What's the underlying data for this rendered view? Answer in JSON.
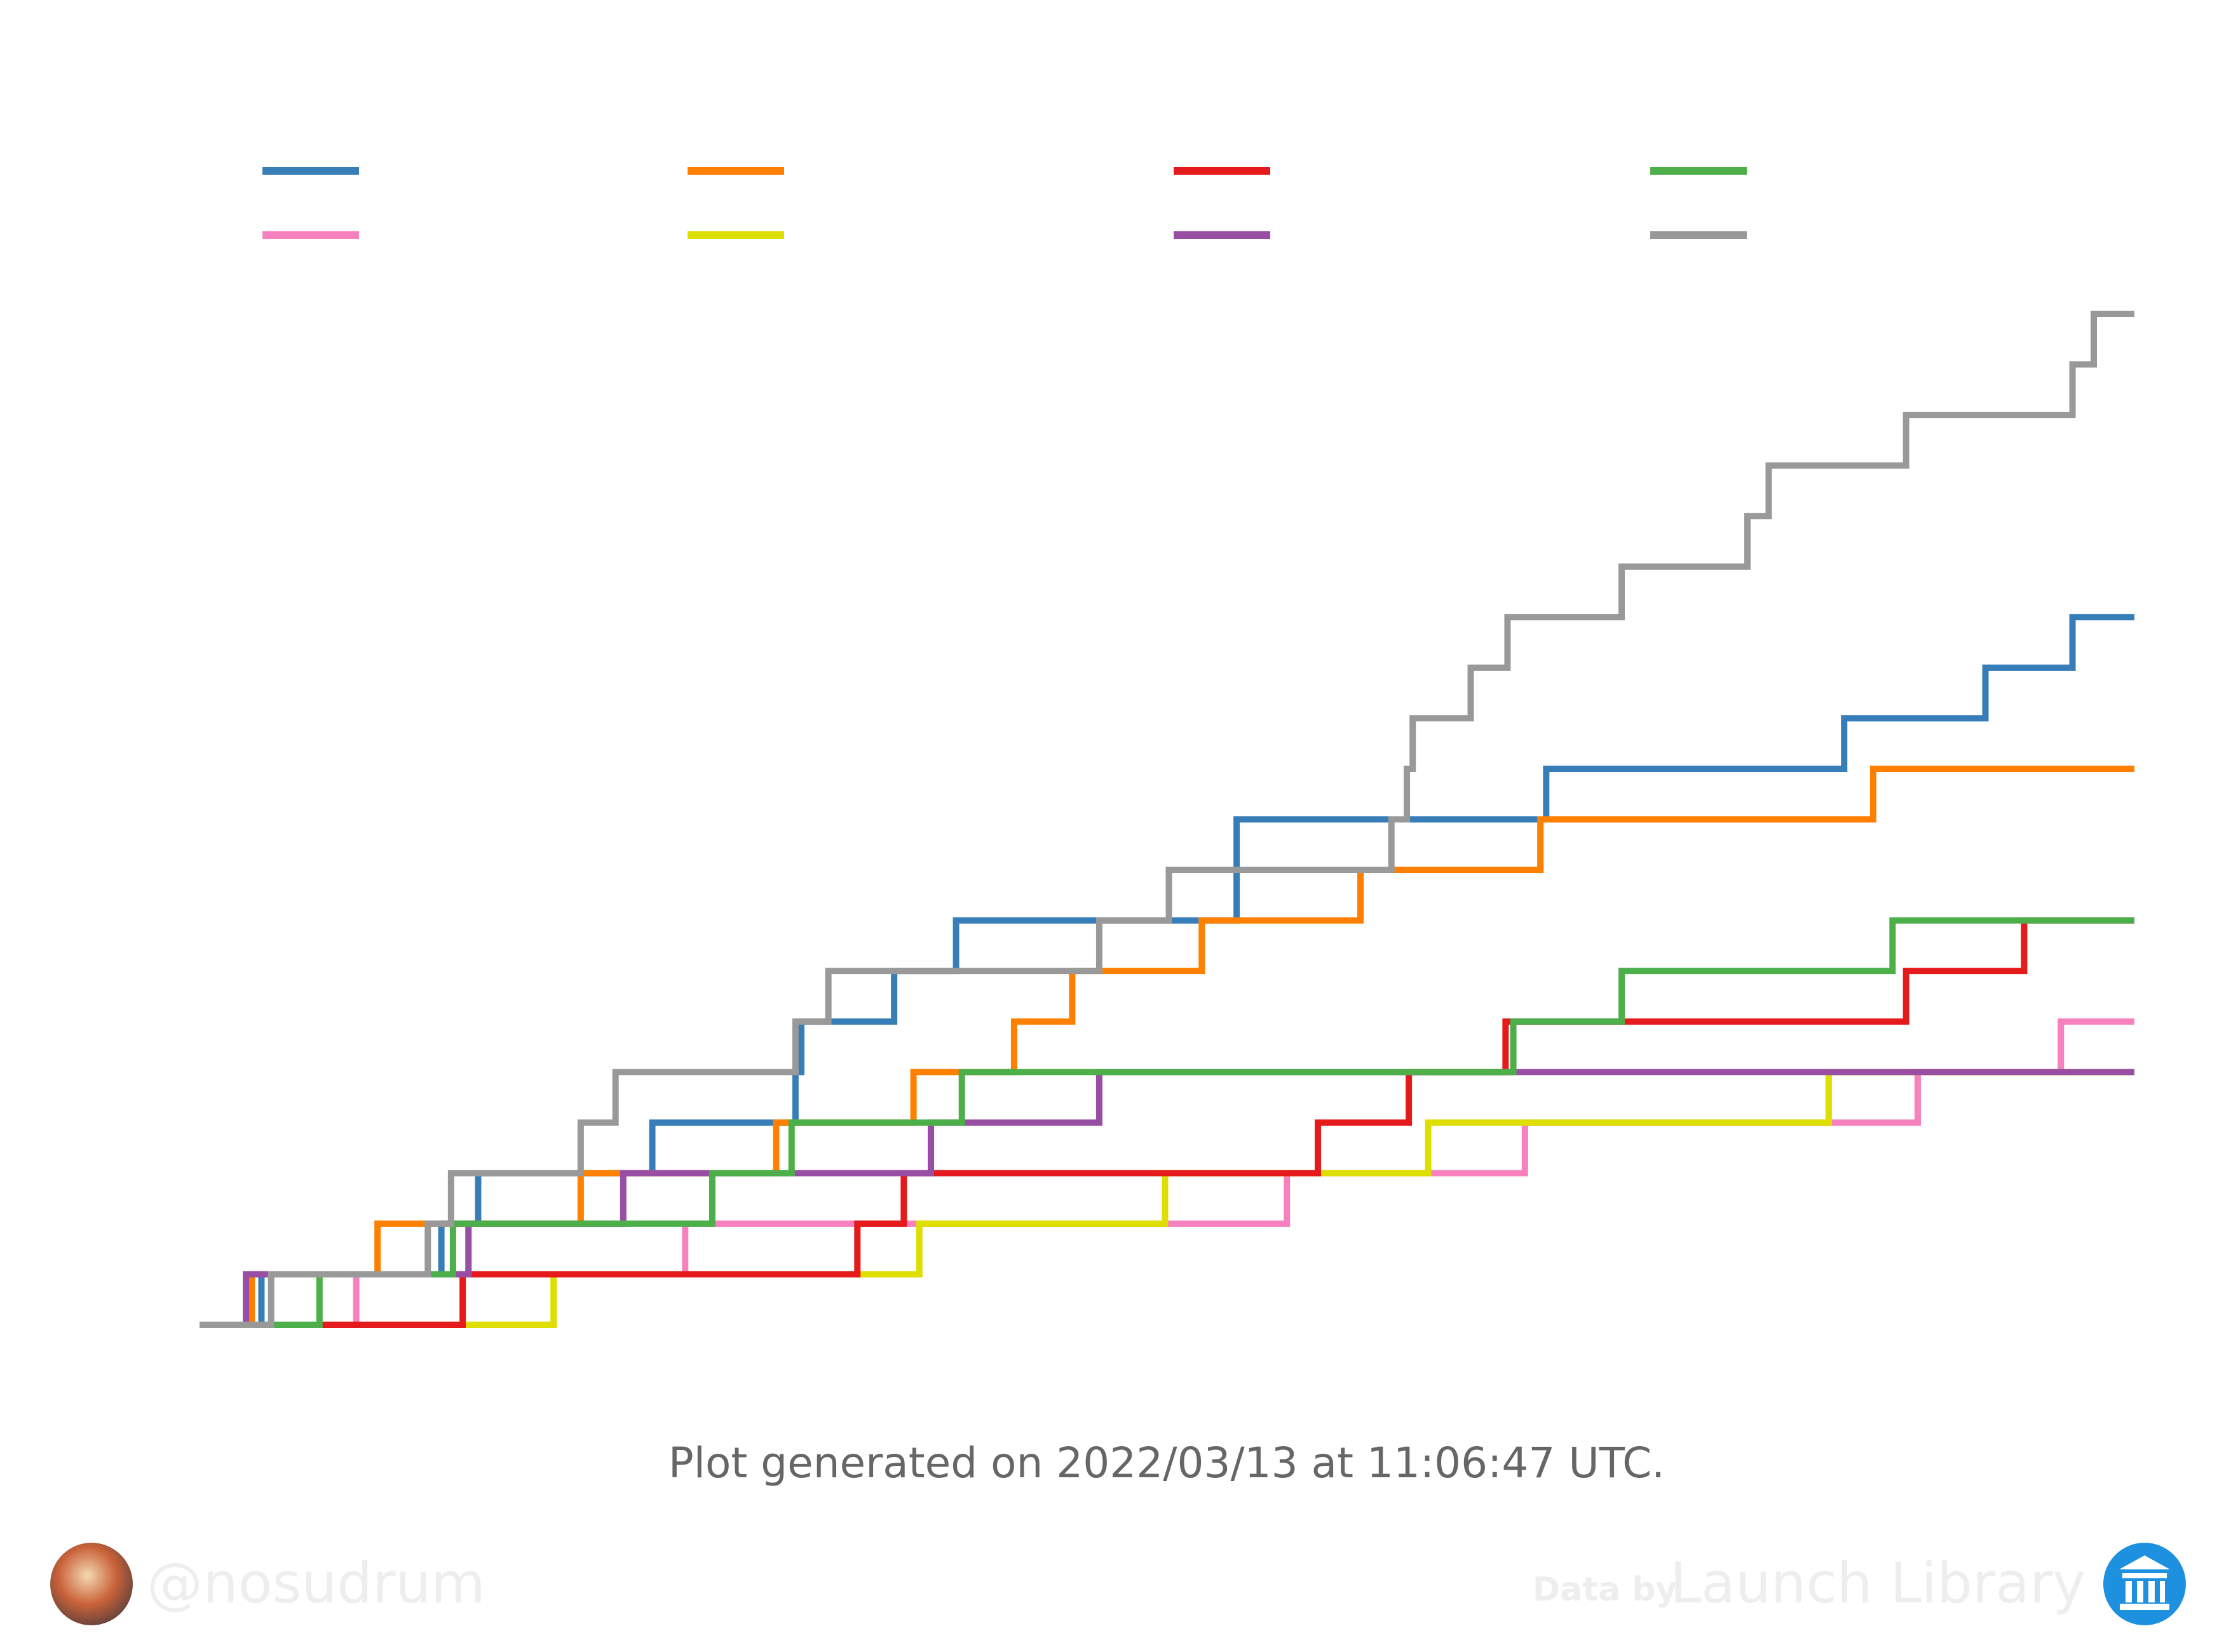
{
  "chart_data": {
    "type": "step",
    "xlim": [
      0,
      100
    ],
    "ylim": [
      0,
      20
    ],
    "grid": false,
    "series": [
      {
        "color": "#377eb8",
        "x": [
          3.2,
          12.5,
          14.4,
          23.4,
          30.8,
          31.1,
          35.9,
          39.1,
          53.6,
          69.6,
          85.0,
          92.3,
          96.8
        ],
        "values": [
          1,
          2,
          3,
          4,
          5,
          6,
          7,
          8,
          10,
          11,
          12,
          13,
          14
        ]
      },
      {
        "color": "#f781bf",
        "x": [
          8.1,
          25.1,
          56.2,
          68.5,
          88.8,
          96.2
        ],
        "values": [
          1,
          2,
          3,
          4,
          5,
          6
        ]
      },
      {
        "color": "#ff7f00",
        "x": [
          2.7,
          9.2,
          19.7,
          29.8,
          36.9,
          42.1,
          45.1,
          51.8,
          60.0,
          69.3,
          86.5
        ],
        "values": [
          1,
          2,
          3,
          4,
          5,
          6,
          7,
          8,
          9,
          10,
          11
        ]
      },
      {
        "color": "#dede00",
        "x": [
          18.3,
          37.2,
          49.9,
          63.5,
          84.2
        ],
        "values": [
          1,
          2,
          3,
          4,
          5
        ]
      },
      {
        "color": "#e41a1c",
        "x": [
          13.6,
          34.0,
          36.4,
          57.8,
          62.5,
          67.5,
          88.2,
          94.3
        ],
        "values": [
          1,
          2,
          3,
          4,
          5,
          6,
          7,
          8
        ]
      },
      {
        "color": "#984ea3",
        "x": [
          2.4,
          13.9,
          21.9,
          37.8,
          46.5
        ],
        "values": [
          1,
          2,
          3,
          4,
          5
        ]
      },
      {
        "color": "#4daf4a",
        "x": [
          6.2,
          13.1,
          26.5,
          30.6,
          39.4,
          67.9,
          73.5,
          87.5
        ],
        "values": [
          1,
          2,
          3,
          4,
          5,
          6,
          7,
          8
        ]
      },
      {
        "color": "#999999",
        "x": [
          3.7,
          11.8,
          13.0,
          19.7,
          21.5,
          30.8,
          32.5,
          46.5,
          50.1,
          61.6,
          62.4,
          62.7,
          65.7,
          67.6,
          73.5,
          80.0,
          81.1,
          88.2,
          96.8,
          97.9
        ],
        "values": [
          1,
          2,
          3,
          4,
          5,
          6,
          7,
          8,
          9,
          10,
          11,
          12,
          13,
          14,
          15,
          16,
          17,
          18,
          19,
          20
        ]
      }
    ],
    "caption": "Plot generated on 2022/03/13 at 11:06:47 UTC.",
    "watermark": {
      "handle": "@nosudrum",
      "data_by": "Data by",
      "source": "Launch Library 2"
    }
  }
}
